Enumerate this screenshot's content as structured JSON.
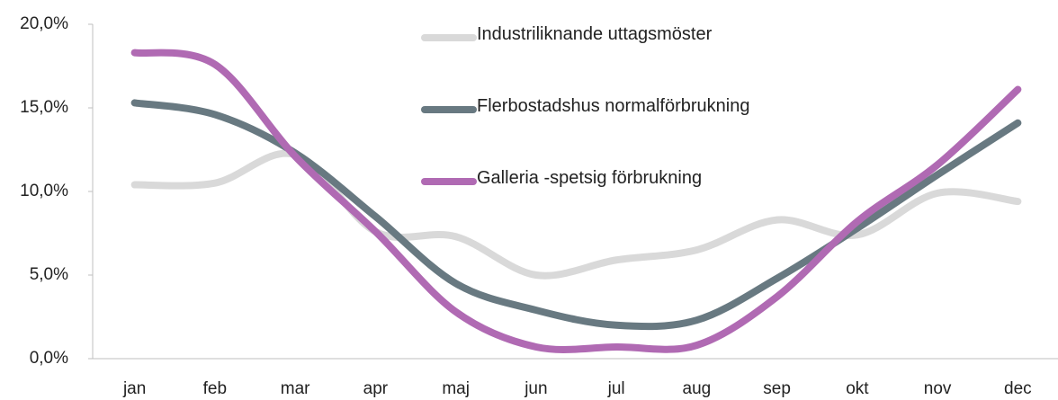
{
  "chart_data": {
    "type": "line",
    "categories": [
      "jan",
      "feb",
      "mar",
      "apr",
      "maj",
      "jun",
      "jul",
      "aug",
      "sep",
      "okt",
      "nov",
      "dec"
    ],
    "series": [
      {
        "name": "Industriliknande uttagsmöster",
        "color": "#d9d9d9",
        "values": [
          10.4,
          10.5,
          12.2,
          7.6,
          7.3,
          5.0,
          5.9,
          6.5,
          8.3,
          7.4,
          9.9,
          9.4
        ]
      },
      {
        "name": "Flerbostadshus normalförbrukning",
        "color": "#687981",
        "values": [
          15.3,
          14.6,
          12.3,
          8.5,
          4.5,
          2.9,
          2.0,
          2.3,
          4.8,
          7.8,
          11.0,
          14.1
        ]
      },
      {
        "name": "Galleria -spetsig förbrukning",
        "color": "#b06ab3",
        "values": [
          18.3,
          17.6,
          12.1,
          7.6,
          2.8,
          0.7,
          0.7,
          0.8,
          3.7,
          8.2,
          11.6,
          16.1
        ]
      }
    ],
    "ylim": [
      0,
      20
    ],
    "yticks": [
      {
        "value": 0,
        "label": "0,0%"
      },
      {
        "value": 5,
        "label": "5,0%"
      },
      {
        "value": 10,
        "label": "10,0%"
      },
      {
        "value": 15,
        "label": "15,0%"
      },
      {
        "value": 20,
        "label": "20,0%"
      }
    ],
    "grid": false
  }
}
